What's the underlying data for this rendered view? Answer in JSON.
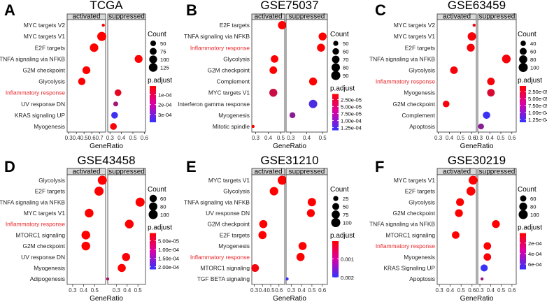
{
  "facets": [
    "activated",
    "suppressed"
  ],
  "xlabel": "GeneRatio",
  "size_legend_title": "Count",
  "color_legend_title": "p.adjust",
  "colors": {
    "low_p": "#ff0000",
    "high_p": "#3333ff",
    "highlight": "#e8262a",
    "strip_fill": "#d9d9d9"
  },
  "chart_data": [
    {
      "type": "scatter",
      "letter": "A",
      "title": "TCGA",
      "categories": [
        "MYC targets V2",
        "MYC targets V1",
        "E2F targets",
        "TNFA signaling via NFKB",
        "G2M checkpoint",
        "Glycolysis",
        "Inflammatory response",
        "UV response DN",
        "KRAS signaling UP",
        "Myogenesis"
      ],
      "highlight": "Inflammatory response",
      "panels": [
        {
          "facet": "activated",
          "xlim": [
            0.28,
            0.78
          ],
          "xticks": [
            0.3,
            0.4,
            0.5,
            0.6,
            0.7
          ],
          "xtick_labels": [
            "0.3",
            "0.4",
            "0.5",
            "0.6",
            "0.7"
          ],
          "points": [
            {
              "category": "MYC targets V2",
              "x": 0.75,
              "count": 30,
              "padj": 1e-05
            },
            {
              "category": "MYC targets V1",
              "x": 0.73,
              "count": 140,
              "padj": 1e-05
            },
            {
              "category": "E2F targets",
              "x": 0.63,
              "count": 120,
              "padj": 1e-05
            },
            {
              "category": "G2M checkpoint",
              "x": 0.53,
              "count": 100,
              "padj": 1e-05
            },
            {
              "category": "Glycolysis",
              "x": 0.47,
              "count": 85,
              "padj": 1e-05
            }
          ]
        },
        {
          "facet": "suppressed",
          "xlim": [
            0.28,
            0.61
          ],
          "xticks": [
            0.3,
            0.4,
            0.5,
            0.6
          ],
          "xtick_labels": [
            "0.3",
            "0.4",
            "0.5",
            "0.6"
          ],
          "points": [
            {
              "category": "TNFA signaling via NFKB",
              "x": 0.55,
              "count": 100,
              "padj": 1e-05
            },
            {
              "category": "Inflammatory response",
              "x": 0.37,
              "count": 70,
              "padj": 6e-05
            },
            {
              "category": "UV response DN",
              "x": 0.35,
              "count": 40,
              "padj": 0.00018
            },
            {
              "category": "KRAS signaling UP",
              "x": 0.34,
              "count": 70,
              "padj": 0.00036
            },
            {
              "category": "Myogenesis",
              "x": 0.33,
              "count": 70,
              "padj": 2e-05
            }
          ]
        }
      ],
      "size_legend": {
        "values": [
          50,
          75,
          100,
          125
        ],
        "labels": [
          "50",
          "75",
          "100",
          "125"
        ]
      },
      "color_legend": {
        "min": 1e-05,
        "max": 0.00038,
        "ticks": [
          0.0001,
          0.0002,
          0.0003
        ],
        "labels": [
          "1e-04",
          "2e-04",
          "3e-04"
        ]
      }
    },
    {
      "type": "scatter",
      "letter": "B",
      "title": "GSE75037",
      "categories": [
        "E2F targets",
        "TNFA signaling via NFKB",
        "Inflammatory response",
        "Glycolysis",
        "G2M checkpoint",
        "Complement",
        "MYC targets V1",
        "Interferon gamma response",
        "Myogenesis",
        "Mitotic spindle"
      ],
      "highlight": "Inflammatory response",
      "panels": [
        {
          "facet": "activated",
          "xlim": [
            0.27,
            0.53
          ],
          "xticks": [
            0.3,
            0.4,
            0.5
          ],
          "xtick_labels": [
            "0.3",
            "0.4",
            "0.5"
          ],
          "points": [
            {
              "category": "E2F targets",
              "x": 0.51,
              "count": 80,
              "padj": 5e-06
            },
            {
              "category": "Glycolysis",
              "x": 0.45,
              "count": 70,
              "padj": 5e-06
            },
            {
              "category": "G2M checkpoint",
              "x": 0.44,
              "count": 70,
              "padj": 5e-06
            },
            {
              "category": "MYC targets V1",
              "x": 0.44,
              "count": 75,
              "padj": 4e-05
            },
            {
              "category": "Mitotic spindle",
              "x": 0.28,
              "count": 45,
              "padj": 5e-06
            }
          ]
        },
        {
          "facet": "suppressed",
          "xlim": [
            0.27,
            0.53
          ],
          "xticks": [
            0.3,
            0.4,
            0.5
          ],
          "xtick_labels": [
            "0.3",
            "0.4",
            "0.5"
          ],
          "points": [
            {
              "category": "TNFA signaling via NFKB",
              "x": 0.5,
              "count": 75,
              "padj": 5e-06
            },
            {
              "category": "Inflammatory response",
              "x": 0.49,
              "count": 75,
              "padj": 5e-06
            },
            {
              "category": "Complement",
              "x": 0.44,
              "count": 75,
              "padj": 5e-06
            },
            {
              "category": "Interferon gamma response",
              "x": 0.44,
              "count": 80,
              "padj": 0.00012
            },
            {
              "category": "Myogenesis",
              "x": 0.31,
              "count": 55,
              "padj": 8e-05
            }
          ]
        }
      ],
      "size_legend": {
        "values": [
          50,
          60,
          70,
          80,
          90
        ],
        "labels": [
          "50",
          "60",
          "70",
          "80",
          "90"
        ]
      },
      "color_legend": {
        "min": 5e-06,
        "max": 0.000135,
        "ticks": [
          2.5e-05,
          5e-05,
          7.5e-05,
          0.0001,
          0.000125
        ],
        "labels": [
          "2.50e-05",
          "5.00e-05",
          "7.50e-05",
          "1.00e-04",
          "1.25e-04"
        ]
      }
    },
    {
      "type": "scatter",
      "letter": "C",
      "title": "GSE63459",
      "categories": [
        "MYC targets V2",
        "MYC targets V1",
        "E2F targets",
        "TNFA signaling via NFKB",
        "Glycolysis",
        "Inflammatory response",
        "Myogenesis",
        "G2M checkpoint",
        "Complement",
        "Apoptosis"
      ],
      "highlight": "Inflammatory response",
      "panels": [
        {
          "facet": "activated",
          "xlim": [
            0.29,
            0.64
          ],
          "xticks": [
            0.3,
            0.4,
            0.5,
            0.6
          ],
          "xtick_labels": [
            "0.3",
            "0.4",
            "0.5",
            "0.6"
          ],
          "points": [
            {
              "category": "MYC targets V2",
              "x": 0.62,
              "count": 30,
              "padj": 1e-05
            },
            {
              "category": "MYC targets V1",
              "x": 0.6,
              "count": 85,
              "padj": 1e-05
            },
            {
              "category": "E2F targets",
              "x": 0.59,
              "count": 75,
              "padj": 1e-05
            },
            {
              "category": "Glycolysis",
              "x": 0.44,
              "count": 70,
              "padj": 1e-05
            },
            {
              "category": "G2M checkpoint",
              "x": 0.37,
              "count": 55,
              "padj": 1e-05
            }
          ]
        },
        {
          "facet": "suppressed",
          "xlim": [
            0.29,
            0.64
          ],
          "xticks": [
            0.3,
            0.4,
            0.5,
            0.6
          ],
          "xtick_labels": [
            "0.3",
            "0.4",
            "0.5",
            "0.6"
          ],
          "points": [
            {
              "category": "TNFA signaling via NFKB",
              "x": 0.55,
              "count": 90,
              "padj": 1e-05
            },
            {
              "category": "Inflammatory response",
              "x": 0.41,
              "count": 70,
              "padj": 1e-05
            },
            {
              "category": "Myogenesis",
              "x": 0.41,
              "count": 70,
              "padj": 3e-05
            },
            {
              "category": "Complement",
              "x": 0.37,
              "count": 65,
              "padj": 0.00013
            },
            {
              "category": "Apoptosis",
              "x": 0.32,
              "count": 45,
              "padj": 8e-05
            }
          ]
        }
      ],
      "size_legend": {
        "values": [
          40,
          60,
          80,
          100
        ],
        "labels": [
          "40",
          "60",
          "80",
          "100"
        ]
      },
      "color_legend": {
        "min": 5e-06,
        "max": 0.000135,
        "ticks": [
          2.5e-05,
          5e-05,
          7.5e-05,
          0.0001,
          0.000125
        ],
        "labels": [
          "2.50e-05",
          "5.00e-05",
          "7.50e-05",
          "1.00e-04",
          "1.25e-04"
        ]
      }
    },
    {
      "type": "scatter",
      "letter": "D",
      "title": "GSE43458",
      "categories": [
        "Glycolysis",
        "E2F targets",
        "TNFA signaling via NFKB",
        "MYC targets V1",
        "Inflammatory response",
        "MTORC1 signaling",
        "G2M checkpoint",
        "UV response DN",
        "Myogenesis",
        "Adipogenesis"
      ],
      "highlight": "Inflammatory response",
      "panels": [
        {
          "facet": "activated",
          "xlim": [
            0.25,
            0.6
          ],
          "xticks": [
            0.3,
            0.4,
            0.5
          ],
          "xtick_labels": [
            "0.3",
            "0.4",
            "0.5"
          ],
          "points": [
            {
              "category": "Glycolysis",
              "x": 0.57,
              "count": 100,
              "padj": 5e-06
            },
            {
              "category": "E2F targets",
              "x": 0.54,
              "count": 100,
              "padj": 5e-06
            },
            {
              "category": "MYC targets V1",
              "x": 0.45,
              "count": 90,
              "padj": 5e-06
            },
            {
              "category": "MTORC1 signaling",
              "x": 0.42,
              "count": 90,
              "padj": 5e-06
            },
            {
              "category": "G2M checkpoint",
              "x": 0.42,
              "count": 90,
              "padj": 5e-06
            }
          ]
        },
        {
          "facet": "suppressed",
          "xlim": [
            0.22,
            0.57
          ],
          "xticks": [
            0.3,
            0.4,
            0.5
          ],
          "xtick_labels": [
            "0.3",
            "0.4",
            "0.5"
          ],
          "points": [
            {
              "category": "TNFA signaling via NFKB",
              "x": 0.52,
              "count": 100,
              "padj": 5e-06
            },
            {
              "category": "Inflammatory response",
              "x": 0.42,
              "count": 90,
              "padj": 5e-06
            },
            {
              "category": "UV response DN",
              "x": 0.39,
              "count": 75,
              "padj": 1e-05
            },
            {
              "category": "Myogenesis",
              "x": 0.35,
              "count": 75,
              "padj": 5e-06
            },
            {
              "category": "Adipogenesis",
              "x": 0.22,
              "count": 20,
              "padj": 9e-05
            }
          ]
        }
      ],
      "size_legend": {
        "values": [
          60,
          80,
          100
        ],
        "labels": [
          "60",
          "80",
          "100"
        ]
      },
      "color_legend": {
        "min": 5e-06,
        "max": 0.000215,
        "ticks": [
          5e-05,
          0.0001,
          0.00015,
          0.0002
        ],
        "labels": [
          "5.00e-05",
          "1.00e-04",
          "1.50e-04",
          "2.00e-04"
        ]
      }
    },
    {
      "type": "scatter",
      "letter": "E",
      "title": "GSE31210",
      "categories": [
        "MYC targets V1",
        "Glycolysis",
        "TNFA signaling via NFKB",
        "UV response DN",
        "G2M checkpoint",
        "E2F targets",
        "Myogenesis",
        "Inflammatory response",
        "MTORC1 signaling",
        "TGF BETA signaling"
      ],
      "highlight": "Inflammatory response",
      "panels": [
        {
          "facet": "activated",
          "xlim": [
            0.27,
            0.67
          ],
          "xticks": [
            0.3,
            0.4,
            0.5,
            0.6
          ],
          "xtick_labels": [
            "0.3",
            "0.4",
            "0.5",
            "0.6"
          ],
          "points": [
            {
              "category": "MYC targets V1",
              "x": 0.64,
              "count": 100,
              "padj": 5e-05
            },
            {
              "category": "Glycolysis",
              "x": 0.54,
              "count": 85,
              "padj": 5e-05
            },
            {
              "category": "G2M checkpoint",
              "x": 0.41,
              "count": 75,
              "padj": 5e-05
            },
            {
              "category": "E2F targets",
              "x": 0.4,
              "count": 75,
              "padj": 5e-05
            },
            {
              "category": "MTORC1 signaling",
              "x": 0.31,
              "count": 65,
              "padj": 0.00015
            }
          ]
        },
        {
          "facet": "suppressed",
          "xlim": [
            0.25,
            0.65
          ],
          "xticks": [
            0.3,
            0.4,
            0.5,
            0.6
          ],
          "xtick_labels": [
            "0.3",
            "0.4",
            "0.5",
            "0.6"
          ],
          "points": [
            {
              "category": "TNFA signaling via NFKB",
              "x": 0.5,
              "count": 80,
              "padj": 5e-05
            },
            {
              "category": "UV response DN",
              "x": 0.49,
              "count": 70,
              "padj": 5e-05
            },
            {
              "category": "Myogenesis",
              "x": 0.41,
              "count": 75,
              "padj": 5e-05
            },
            {
              "category": "Inflammatory response",
              "x": 0.39,
              "count": 75,
              "padj": 5e-05
            },
            {
              "category": "TGF BETA signaling",
              "x": 0.26,
              "count": 15,
              "padj": 0.00195
            }
          ]
        }
      ],
      "size_legend": {
        "values": [
          25,
          50,
          75,
          100
        ],
        "labels": [
          "25",
          "50",
          "75",
          "100"
        ]
      },
      "color_legend": {
        "min": 5e-05,
        "max": 0.002,
        "ticks": [
          0.001,
          0.002
        ],
        "labels": [
          "0.001",
          "0.002"
        ]
      }
    },
    {
      "type": "scatter",
      "letter": "F",
      "title": "GSE30219",
      "categories": [
        "MYC targets V1",
        "E2F targets",
        "Glycolysis",
        "G2M checkpoint",
        "TNFA signaling via NFKB",
        "MTORC1 signaling",
        "Inflammatory response",
        "Myogenesis",
        "KRAS Signaling UP",
        "Apoptosis"
      ],
      "highlight": "Inflammatory response",
      "panels": [
        {
          "facet": "activated",
          "xlim": [
            0.28,
            0.64
          ],
          "xticks": [
            0.3,
            0.4,
            0.5,
            0.6
          ],
          "xtick_labels": [
            "0.3",
            "0.4",
            "0.5",
            "0.6"
          ],
          "points": [
            {
              "category": "MYC targets V1",
              "x": 0.61,
              "count": 95,
              "padj": 1e-05
            },
            {
              "category": "E2F targets",
              "x": 0.59,
              "count": 95,
              "padj": 1e-05
            },
            {
              "category": "Glycolysis",
              "x": 0.49,
              "count": 80,
              "padj": 1e-05
            },
            {
              "category": "G2M checkpoint",
              "x": 0.48,
              "count": 80,
              "padj": 1e-05
            },
            {
              "category": "MTORC1 signaling",
              "x": 0.45,
              "count": 75,
              "padj": 1e-05
            }
          ]
        },
        {
          "facet": "suppressed",
          "xlim": [
            0.28,
            0.64
          ],
          "xticks": [
            0.3,
            0.4,
            0.5,
            0.6
          ],
          "xtick_labels": [
            "0.3",
            "0.4",
            "0.5",
            "0.6"
          ],
          "points": [
            {
              "category": "TNFA signaling via NFKB",
              "x": 0.45,
              "count": 80,
              "padj": 1e-05
            },
            {
              "category": "Inflammatory response",
              "x": 0.37,
              "count": 75,
              "padj": 1e-05
            },
            {
              "category": "Myogenesis",
              "x": 0.37,
              "count": 75,
              "padj": 3e-05
            },
            {
              "category": "KRAS Signaling UP",
              "x": 0.34,
              "count": 70,
              "padj": 0.00068
            },
            {
              "category": "Apoptosis",
              "x": 0.32,
              "count": 45,
              "padj": 0.00035
            }
          ]
        }
      ],
      "size_legend": {
        "values": [
          60,
          80,
          100
        ],
        "labels": [
          "60",
          "80",
          "100"
        ]
      },
      "color_legend": {
        "min": 1e-05,
        "max": 0.0007,
        "ticks": [
          0.0002,
          0.0004,
          0.0006
        ],
        "labels": [
          "2e-04",
          "4e-04",
          "6e-04"
        ]
      }
    }
  ]
}
